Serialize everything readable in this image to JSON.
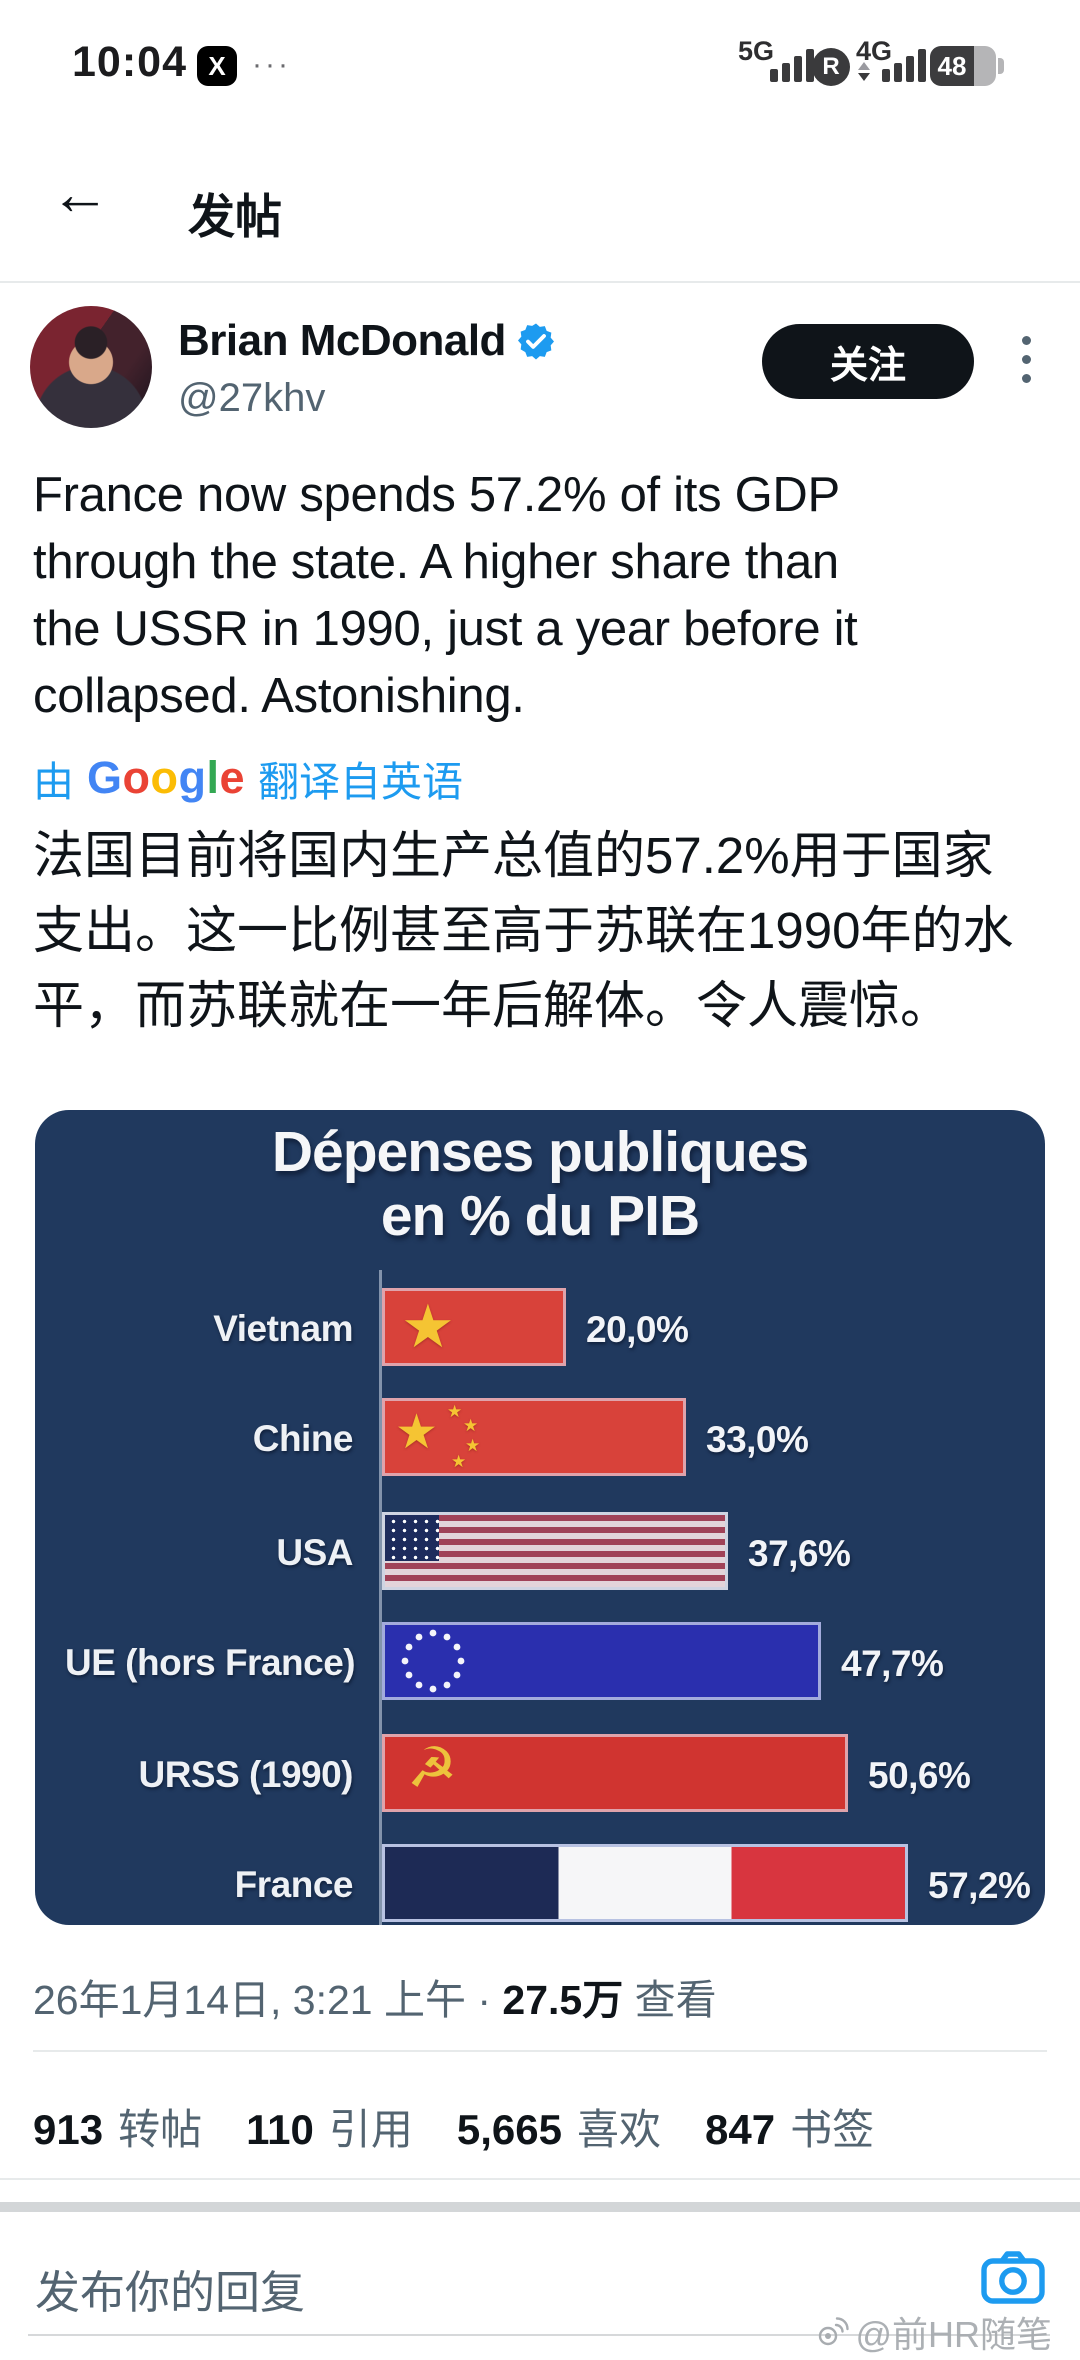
{
  "status_bar": {
    "time": "10:04",
    "app_badge": "X",
    "ellipsis": "···",
    "signal_left_label": "5G",
    "roaming_badge": "R",
    "signal_right_label": "4G",
    "battery_level": "48"
  },
  "header": {
    "back_icon": "←",
    "title": "发帖"
  },
  "author": {
    "name": "Brian McDonald",
    "handle": "@27khv",
    "follow_label": "关注"
  },
  "tweet": {
    "text": "France now spends 57.2% of its GDP\nthrough the state. A higher share than\nthe USSR in 1990, just a year before it\ncollapsed. Astonishing.",
    "translation_attribution": {
      "prefix": "由",
      "google": [
        "G",
        "o",
        "o",
        "g",
        "l",
        "e"
      ],
      "suffix": "翻译自英语"
    },
    "translated_text": "法国目前将国内生产总值的57.2%用于国家\n支出。这一比例甚至高于苏联在1990年的水\n平，而苏联就在一年后解体。令人震惊。",
    "timestamp": {
      "date_part": "26年1月14日, 3:21 上午",
      "separator": " · ",
      "views_count": "27.5万",
      "views_label": " 查看"
    },
    "stats": [
      {
        "value": "913",
        "label": "转帖"
      },
      {
        "value": "110",
        "label": "引用"
      },
      {
        "value": "5,665",
        "label": "喜欢"
      },
      {
        "value": "847",
        "label": "书签"
      }
    ]
  },
  "chart_data": {
    "type": "bar",
    "orientation": "horizontal",
    "title": "Dépenses publiques\nen % du PIB",
    "categories": [
      "Vietnam",
      "Chine",
      "USA",
      "UE (hors France)",
      "URSS (1990)",
      "France"
    ],
    "values": [
      20.0,
      33.0,
      37.6,
      47.7,
      50.6,
      57.2
    ],
    "value_labels": [
      "20,0%",
      "33,0%",
      "37,6%",
      "47,7%",
      "50,6%",
      "57,2%"
    ],
    "xlim": [
      0,
      60
    ],
    "bar_style": "country-flag-fills",
    "background": "#20395e",
    "legend": "none",
    "grid": "off"
  },
  "reply_bar": {
    "placeholder": "发布你的回复"
  },
  "watermark": {
    "text": "@前HR随笔"
  },
  "colors": {
    "accent_blue": "#1d9bf0",
    "follow_button": "#0f1419",
    "chart_bg": "#20395e"
  }
}
